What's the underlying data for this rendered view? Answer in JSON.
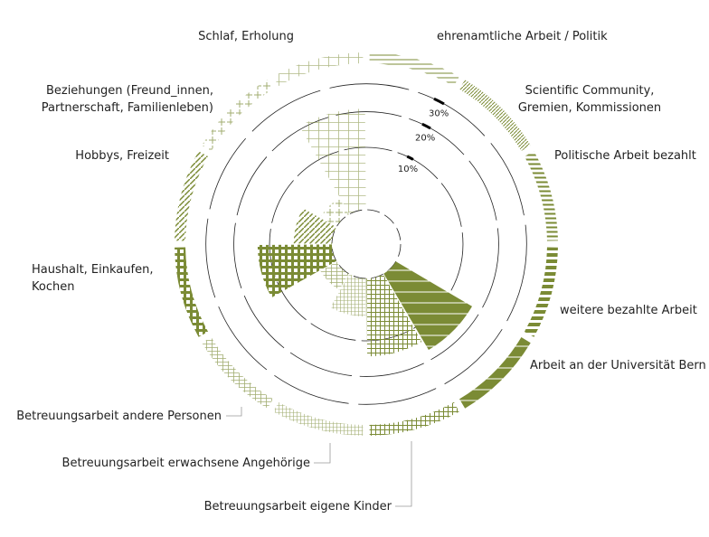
{
  "chart_data": {
    "type": "polar-area",
    "color": "#7b8b35",
    "categories": [
      "ehrenamtliche Arbeit / Politik",
      "Scientific Community,\nGremien, Kommissionen",
      "Politische Arbeit bezahlt",
      "weitere bezahlte Arbeit",
      "Arbeit an der Universität Bern",
      "Betreuungsarbeit eigene Kinder",
      "Betreuungsarbeit erwachsene Angehörige",
      "Betreuungsarbeit andere Personen",
      "Haushalt, Einkaufen,\nKochen",
      "Hobbys, Freizeit",
      "Beziehungen (Freund_innen,\nPartnerschaft, Familienleben)",
      "Schlaf, Erholung"
    ],
    "values": [
      0,
      0,
      0,
      0,
      17,
      14,
      5,
      2,
      13,
      5,
      2,
      21
    ],
    "rticks": [
      {
        "value": 10,
        "label": "10%"
      },
      {
        "value": 20,
        "label": "20%"
      },
      {
        "value": 30,
        "label": "30%"
      }
    ]
  }
}
